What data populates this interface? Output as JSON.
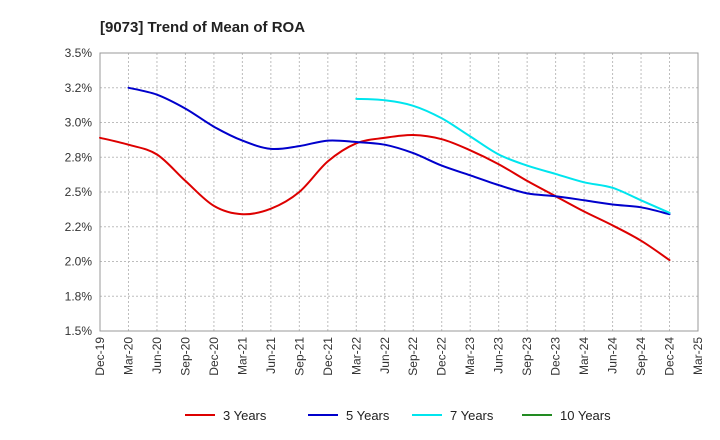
{
  "chart_data": {
    "type": "line",
    "title": "[9073]  Trend of Mean of ROA",
    "xlabel": "",
    "ylabel": "",
    "ylim": [
      1.5,
      3.5
    ],
    "yticks": [
      "3.5%",
      "3.2%",
      "3.0%",
      "2.8%",
      "2.5%",
      "2.2%",
      "2.0%",
      "1.8%",
      "1.5%"
    ],
    "ytick_values": [
      3.5,
      3.25,
      3.0,
      2.75,
      2.5,
      2.25,
      2.0,
      1.75,
      1.5
    ],
    "categories": [
      "Dec-19",
      "Mar-20",
      "Jun-20",
      "Sep-20",
      "Dec-20",
      "Mar-21",
      "Jun-21",
      "Sep-21",
      "Dec-21",
      "Mar-22",
      "Jun-22",
      "Sep-22",
      "Dec-22",
      "Mar-23",
      "Jun-23",
      "Sep-23",
      "Dec-23",
      "Mar-24",
      "Jun-24",
      "Sep-24",
      "Dec-24",
      "Mar-25"
    ],
    "grid": true,
    "legend_position": "bottom",
    "series": [
      {
        "name": "3 Years",
        "color": "#dd0000",
        "values": [
          2.89,
          2.84,
          2.77,
          2.58,
          2.4,
          2.34,
          2.38,
          2.5,
          2.72,
          2.85,
          2.89,
          2.91,
          2.88,
          2.8,
          2.7,
          2.58,
          2.47,
          2.36,
          2.26,
          2.15,
          2.01,
          null
        ]
      },
      {
        "name": "5 Years",
        "color": "#0000cc",
        "values": [
          null,
          3.25,
          3.2,
          3.1,
          2.97,
          2.87,
          2.81,
          2.83,
          2.87,
          2.86,
          2.84,
          2.78,
          2.69,
          2.62,
          2.55,
          2.49,
          2.47,
          2.44,
          2.41,
          2.39,
          2.34,
          null
        ]
      },
      {
        "name": "7 Years",
        "color": "#00e5ee",
        "values": [
          null,
          null,
          null,
          null,
          null,
          null,
          null,
          null,
          null,
          3.17,
          3.16,
          3.12,
          3.03,
          2.9,
          2.77,
          2.69,
          2.63,
          2.57,
          2.53,
          2.44,
          2.35,
          null
        ]
      },
      {
        "name": "10 Years",
        "color": "#228b22",
        "values": [
          null,
          null,
          null,
          null,
          null,
          null,
          null,
          null,
          null,
          null,
          null,
          null,
          null,
          null,
          null,
          null,
          null,
          null,
          null,
          null,
          null,
          null
        ]
      }
    ]
  }
}
